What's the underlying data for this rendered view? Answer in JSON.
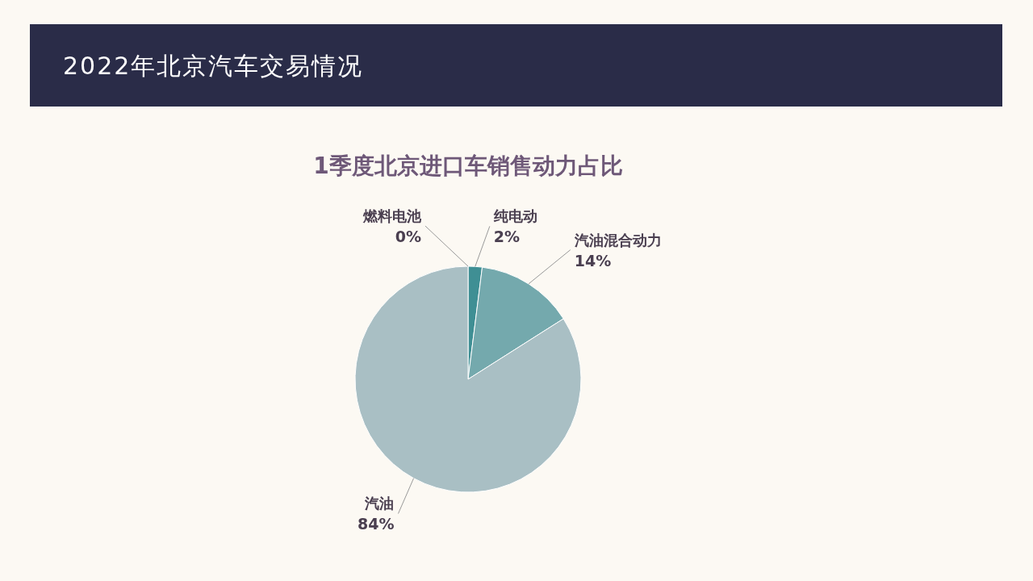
{
  "chart_data": {
    "type": "pie",
    "title": "2022年北京汽车交易情况",
    "subtitle": "1季度北京进口车销售动力占比",
    "categories": [
      "燃料电池",
      "纯电动",
      "汽油混合动力",
      "汽油"
    ],
    "values": [
      0,
      2,
      14,
      84
    ],
    "colors": [
      "#2f6f7a",
      "#3f8f94",
      "#74a9ad",
      "#a9bfc4"
    ],
    "value_labels": [
      "0%",
      "2%",
      "14%",
      "84%"
    ],
    "legend": false
  }
}
